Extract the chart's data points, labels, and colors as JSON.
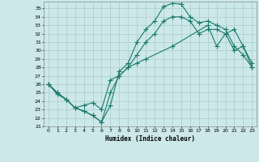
{
  "xlabel": "Humidex (Indice chaleur)",
  "xlim": [
    -0.5,
    23.5
  ],
  "ylim": [
    21,
    35.8
  ],
  "yticks": [
    21,
    22,
    23,
    24,
    25,
    26,
    27,
    28,
    29,
    30,
    31,
    32,
    33,
    34,
    35
  ],
  "xticks": [
    0,
    1,
    2,
    3,
    4,
    5,
    6,
    7,
    8,
    9,
    10,
    11,
    12,
    13,
    14,
    15,
    16,
    17,
    18,
    19,
    20,
    21,
    22,
    23
  ],
  "bg_color": "#cce8e8",
  "grid_color": "#aacccc",
  "line_color": "#1a7a6e",
  "line1_x": [
    0,
    1,
    2,
    3,
    4,
    5,
    6,
    7,
    8,
    9,
    10,
    11,
    12,
    13,
    14,
    15,
    16,
    17,
    18,
    19,
    20,
    21,
    22,
    23
  ],
  "line1_y": [
    26.0,
    25.0,
    24.2,
    23.2,
    22.8,
    22.3,
    21.5,
    23.5,
    27.5,
    28.5,
    31.0,
    32.5,
    33.5,
    35.2,
    35.6,
    35.5,
    34.0,
    33.3,
    33.5,
    33.0,
    32.5,
    30.5,
    29.5,
    28.0
  ],
  "line2_x": [
    0,
    1,
    2,
    3,
    4,
    5,
    6,
    7,
    8,
    9,
    10,
    11,
    12,
    13,
    14,
    15,
    16,
    17,
    18,
    19,
    20,
    21,
    22,
    23
  ],
  "line2_y": [
    26.0,
    25.0,
    24.2,
    23.2,
    22.8,
    22.3,
    21.5,
    25.0,
    27.0,
    28.0,
    29.5,
    31.0,
    32.0,
    33.5,
    34.0,
    34.0,
    33.5,
    32.0,
    32.5,
    32.5,
    32.0,
    30.0,
    30.5,
    28.5
  ],
  "line3_x": [
    0,
    1,
    2,
    3,
    4,
    5,
    6,
    7,
    8,
    9,
    10,
    11,
    14,
    18,
    19,
    20,
    21,
    22,
    23
  ],
  "line3_y": [
    26.0,
    24.8,
    24.2,
    23.2,
    23.5,
    23.8,
    23.0,
    26.5,
    27.0,
    28.0,
    28.5,
    29.0,
    30.5,
    33.0,
    30.5,
    32.0,
    32.5,
    30.5,
    28.0
  ]
}
